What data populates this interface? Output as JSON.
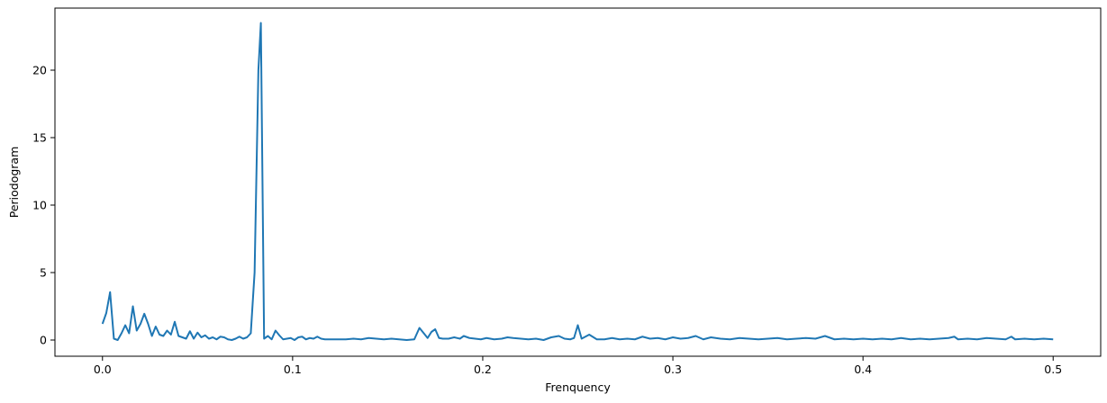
{
  "chart_data": {
    "type": "line",
    "title": "",
    "xlabel": "Frenquency",
    "ylabel": "Periodogram",
    "xlim": [
      -0.025,
      0.525
    ],
    "ylim": [
      -1.2,
      24.6
    ],
    "x_ticks": [
      0.0,
      0.1,
      0.2,
      0.3,
      0.4,
      0.5
    ],
    "x_tick_labels": [
      "0.0",
      "0.1",
      "0.2",
      "0.3",
      "0.4",
      "0.5"
    ],
    "y_ticks": [
      0,
      5,
      10,
      15,
      20
    ],
    "y_tick_labels": [
      "0",
      "5",
      "10",
      "15",
      "20"
    ],
    "grid": false,
    "line_color": "#1f77b4",
    "series": [
      {
        "x": [
          0.0,
          0.002,
          0.004,
          0.006,
          0.008,
          0.01,
          0.012,
          0.014,
          0.016,
          0.018,
          0.02,
          0.022,
          0.024,
          0.026,
          0.028,
          0.03,
          0.032,
          0.034,
          0.036,
          0.038,
          0.04,
          0.042,
          0.044,
          0.046,
          0.048,
          0.05,
          0.052,
          0.054,
          0.056,
          0.058,
          0.06,
          0.062,
          0.064,
          0.066,
          0.068,
          0.07,
          0.072,
          0.074,
          0.076,
          0.078,
          0.08,
          0.082,
          0.0833,
          0.085,
          0.087,
          0.089,
          0.091,
          0.093,
          0.095,
          0.097,
          0.099,
          0.101,
          0.103,
          0.105,
          0.107,
          0.109,
          0.111,
          0.113,
          0.115,
          0.117,
          0.12,
          0.124,
          0.128,
          0.132,
          0.136,
          0.14,
          0.144,
          0.148,
          0.152,
          0.156,
          0.16,
          0.164,
          0.1667,
          0.169,
          0.171,
          0.173,
          0.175,
          0.177,
          0.179,
          0.182,
          0.185,
          0.188,
          0.19,
          0.193,
          0.196,
          0.199,
          0.202,
          0.206,
          0.21,
          0.213,
          0.216,
          0.22,
          0.224,
          0.228,
          0.232,
          0.236,
          0.24,
          0.243,
          0.246,
          0.248,
          0.25,
          0.252,
          0.256,
          0.26,
          0.264,
          0.268,
          0.272,
          0.276,
          0.28,
          0.284,
          0.288,
          0.292,
          0.296,
          0.3,
          0.304,
          0.308,
          0.312,
          0.316,
          0.32,
          0.325,
          0.33,
          0.335,
          0.34,
          0.345,
          0.35,
          0.355,
          0.36,
          0.365,
          0.37,
          0.375,
          0.38,
          0.385,
          0.39,
          0.395,
          0.4,
          0.405,
          0.41,
          0.415,
          0.42,
          0.425,
          0.43,
          0.435,
          0.44,
          0.445,
          0.448,
          0.45,
          0.455,
          0.46,
          0.465,
          0.47,
          0.475,
          0.478,
          0.48,
          0.485,
          0.49,
          0.495,
          0.5
        ],
        "y": [
          1.2,
          2.0,
          3.55,
          0.1,
          0.0,
          0.5,
          1.1,
          0.5,
          2.5,
          0.7,
          1.2,
          1.95,
          1.2,
          0.3,
          1.0,
          0.4,
          0.3,
          0.7,
          0.4,
          1.35,
          0.3,
          0.2,
          0.1,
          0.65,
          0.1,
          0.55,
          0.2,
          0.35,
          0.1,
          0.2,
          0.05,
          0.25,
          0.2,
          0.05,
          0.0,
          0.1,
          0.25,
          0.1,
          0.2,
          0.5,
          5.0,
          20.0,
          23.5,
          0.1,
          0.3,
          0.05,
          0.7,
          0.35,
          0.05,
          0.1,
          0.15,
          0.0,
          0.2,
          0.25,
          0.05,
          0.15,
          0.1,
          0.25,
          0.1,
          0.05,
          0.05,
          0.05,
          0.05,
          0.1,
          0.05,
          0.15,
          0.1,
          0.05,
          0.1,
          0.05,
          0.0,
          0.05,
          0.9,
          0.5,
          0.15,
          0.6,
          0.8,
          0.15,
          0.1,
          0.1,
          0.2,
          0.1,
          0.3,
          0.15,
          0.1,
          0.05,
          0.15,
          0.05,
          0.1,
          0.2,
          0.15,
          0.1,
          0.05,
          0.1,
          0.0,
          0.2,
          0.3,
          0.1,
          0.05,
          0.15,
          1.1,
          0.1,
          0.4,
          0.05,
          0.05,
          0.15,
          0.05,
          0.1,
          0.05,
          0.25,
          0.1,
          0.15,
          0.05,
          0.2,
          0.1,
          0.15,
          0.3,
          0.05,
          0.2,
          0.1,
          0.05,
          0.15,
          0.1,
          0.05,
          0.1,
          0.15,
          0.05,
          0.1,
          0.15,
          0.1,
          0.3,
          0.05,
          0.1,
          0.05,
          0.1,
          0.05,
          0.1,
          0.05,
          0.15,
          0.05,
          0.1,
          0.05,
          0.1,
          0.15,
          0.25,
          0.05,
          0.1,
          0.05,
          0.15,
          0.1,
          0.05,
          0.25,
          0.05,
          0.1,
          0.05,
          0.1,
          0.05
        ]
      }
    ]
  }
}
